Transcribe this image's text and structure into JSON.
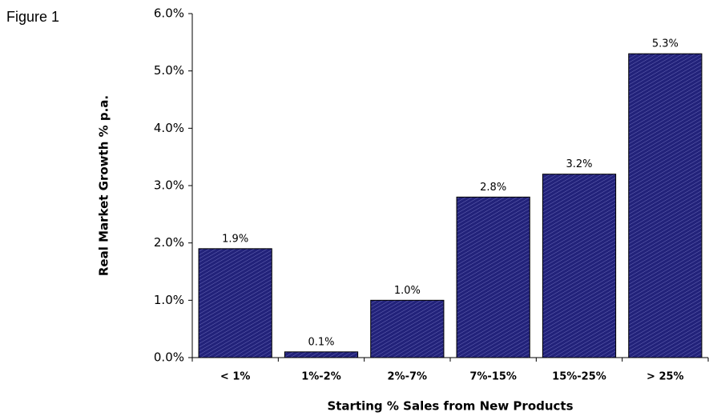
{
  "chart_data": {
    "type": "bar",
    "annotation": "Figure 1",
    "x_label": "Starting % Sales from New Products",
    "y_label": "Real Market Growth % p.a.",
    "categories": [
      "< 1%",
      "1%-2%",
      "2%-7%",
      "7%-15%",
      "15%-25%",
      "> 25%"
    ],
    "values": [
      1.9,
      0.1,
      1.0,
      2.8,
      3.2,
      5.3
    ],
    "value_labels": [
      "1.9%",
      "0.1%",
      "1.0%",
      "2.8%",
      "3.2%",
      "5.3%"
    ],
    "color": "#22227a",
    "ylim": [
      0,
      6
    ],
    "yticks": [
      {
        "value": 0,
        "label": "0.0%"
      },
      {
        "value": 1,
        "label": "1.0%"
      },
      {
        "value": 2,
        "label": "2.0%"
      },
      {
        "value": 3,
        "label": "3.0%"
      },
      {
        "value": 4,
        "label": "4.0%"
      },
      {
        "value": 5,
        "label": "5.0%"
      },
      {
        "value": 6,
        "label": "6.0%"
      }
    ],
    "grid": false
  }
}
